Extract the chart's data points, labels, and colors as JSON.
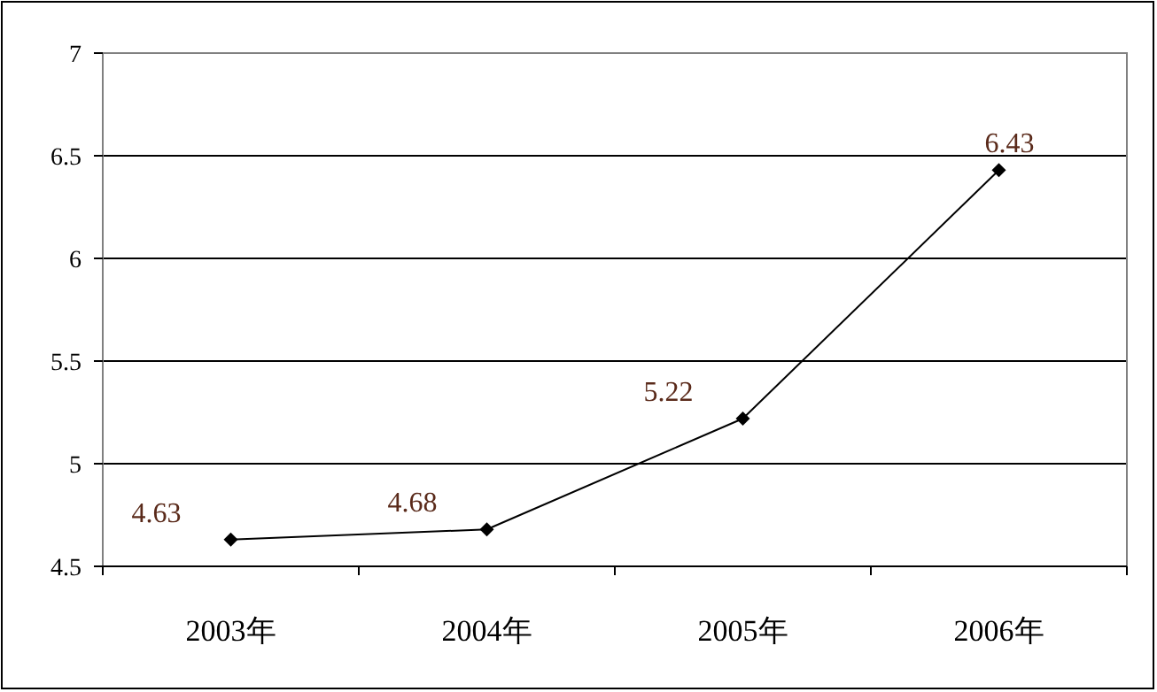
{
  "chart_data": {
    "type": "line",
    "categories": [
      "2003年",
      "2004年",
      "2005年",
      "2006年"
    ],
    "series": [
      {
        "color": "#000000",
        "values": [
          4.63,
          4.68,
          5.22,
          6.43
        ]
      }
    ],
    "ylim": [
      4.5,
      7
    ],
    "yticks": [
      4.5,
      5,
      5.5,
      6,
      6.5,
      7
    ],
    "grid": "y",
    "marker": "diamond",
    "line_style": "solid",
    "data_labels": true
  }
}
